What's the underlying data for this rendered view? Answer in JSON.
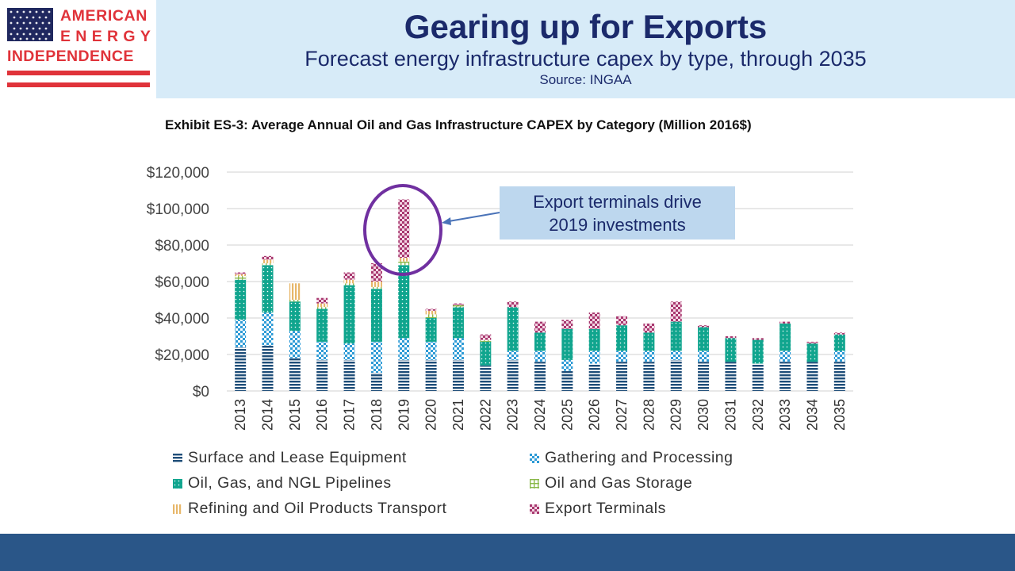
{
  "logo": {
    "line1": "AMERICAN",
    "line2": "ENERGY",
    "line3": "INDEPENDENCE"
  },
  "header": {
    "title": "Gearing up for Exports",
    "subtitle": "Forecast energy infrastructure capex by type, through 2035",
    "source": "Source: INGAA"
  },
  "callout": {
    "text": "Export terminals drive 2019 investments"
  },
  "colors": {
    "header_bg": "#d7ebf8",
    "footer_bg": "#2a5688",
    "title_text": "#1b2a6b",
    "callout_bg": "#bdd7ee",
    "circle": "#7030a0",
    "arrow": "#4a73b8"
  },
  "chart_data": {
    "type": "bar",
    "stacked": true,
    "title": "Exhibit ES-3: Average Annual Oil and Gas Infrastructure CAPEX by Category (Million 2016$)",
    "xlabel": "",
    "ylabel": "",
    "ylim": [
      0,
      120000
    ],
    "ytick_labels": [
      "$0",
      "$20,000",
      "$40,000",
      "$60,000",
      "$80,000",
      "$100,000",
      "$120,000"
    ],
    "grid": true,
    "legend_position": "bottom",
    "categories": [
      "2013",
      "2014",
      "2015",
      "2016",
      "2017",
      "2018",
      "2019",
      "2020",
      "2021",
      "2022",
      "2023",
      "2024",
      "2025",
      "2026",
      "2027",
      "2028",
      "2029",
      "2030",
      "2031",
      "2032",
      "2033",
      "2034",
      "2035"
    ],
    "series": [
      {
        "name": "Surface and Lease Equipment",
        "color": "#1f4e79",
        "values": [
          24000,
          25000,
          18000,
          17000,
          17000,
          10000,
          17000,
          17000,
          17000,
          14000,
          17000,
          16000,
          11000,
          15000,
          16000,
          16000,
          17000,
          16000,
          16000,
          15000,
          16000,
          16000,
          16000
        ]
      },
      {
        "name": "Gathering and Processing",
        "color": "#2e9bd6",
        "values": [
          15000,
          18000,
          15000,
          10000,
          9000,
          17000,
          12000,
          10000,
          12000,
          0,
          5000,
          6000,
          6000,
          7000,
          6000,
          6000,
          5000,
          6000,
          0,
          0,
          6000,
          0,
          6000
        ]
      },
      {
        "name": "Oil, Gas, and NGL Pipelines",
        "color": "#10a58e",
        "values": [
          22000,
          26000,
          16000,
          18000,
          32000,
          29000,
          40000,
          13000,
          17000,
          13000,
          24000,
          10000,
          17000,
          12000,
          14000,
          10000,
          16000,
          13000,
          13000,
          13000,
          15000,
          10000,
          9000
        ]
      },
      {
        "name": "Oil and Gas Storage",
        "color": "#8ab84a",
        "values": [
          2000,
          1000,
          1000,
          1000,
          1000,
          1000,
          2000,
          2000,
          1000,
          1000,
          0,
          0,
          0,
          0,
          0,
          0,
          0,
          0,
          0,
          0,
          0,
          0,
          0
        ]
      },
      {
        "name": "Refining and Oil Products Transport",
        "color": "#e7b76a",
        "values": [
          1000,
          2000,
          9000,
          2000,
          2000,
          3000,
          2000,
          2000,
          0,
          0,
          0,
          0,
          0,
          0,
          0,
          0,
          0,
          0,
          0,
          0,
          0,
          0,
          0
        ]
      },
      {
        "name": "Export Terminals",
        "color": "#a8386f",
        "values": [
          1000,
          2000,
          0,
          3000,
          4000,
          10000,
          32000,
          1000,
          1000,
          3000,
          3000,
          6000,
          5000,
          9000,
          5000,
          5000,
          11000,
          1000,
          1000,
          1000,
          1000,
          1000,
          1000
        ]
      }
    ]
  }
}
